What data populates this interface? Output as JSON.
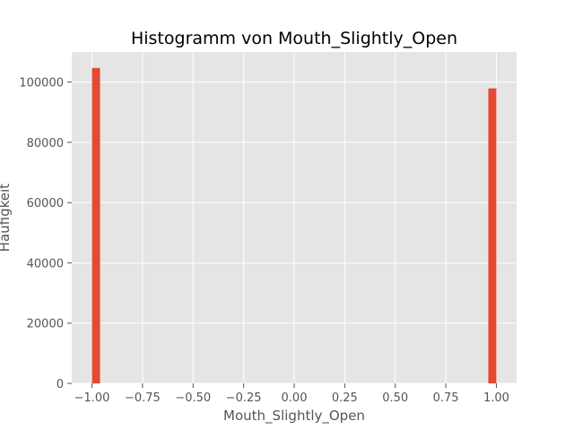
{
  "chart_data": {
    "type": "bar",
    "title": "Histogramm von Mouth_Slightly_Open",
    "xlabel": "Mouth_Slightly_Open",
    "ylabel": "Häufigkeit",
    "xlim": [
      -1.1,
      1.1
    ],
    "ylim": [
      0,
      110000
    ],
    "xticks": [
      -1.0,
      -0.75,
      -0.5,
      -0.25,
      0.0,
      0.25,
      0.5,
      0.75,
      1.0
    ],
    "xtick_labels": [
      "−1.00",
      "−0.75",
      "−0.50",
      "−0.25",
      "0.00",
      "0.25",
      "0.50",
      "0.75",
      "1.00"
    ],
    "yticks": [
      0,
      20000,
      40000,
      60000,
      80000,
      100000
    ],
    "ytick_labels": [
      "0",
      "20000",
      "40000",
      "60000",
      "80000",
      "100000"
    ],
    "bins": [
      {
        "x0": -1.0,
        "x1": -0.96,
        "count": 104700
      },
      {
        "x0": 0.96,
        "x1": 1.0,
        "count": 97900
      }
    ],
    "grid": true,
    "colors": {
      "bar": "#E24A33",
      "plot_bg": "#E5E5E5",
      "grid": "#FFFFFF"
    }
  }
}
